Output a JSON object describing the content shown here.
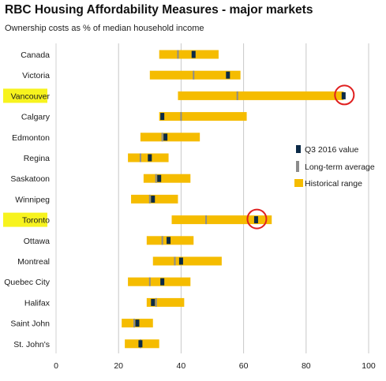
{
  "title": "RBC Housing Affordability Measures - major markets",
  "subtitle": "Ownership costs as % of median household income",
  "colors": {
    "range": "#f5bc00",
    "longterm": "#8c8c8c",
    "current": "#0b2a47",
    "highlight": "#f7f31e",
    "circle": "#e02020",
    "grid": "#c8c8c8"
  },
  "legend": {
    "q3": "Q3 2016 value",
    "lta": "Long-term average",
    "range": "Historical range"
  },
  "chart_data": {
    "type": "range",
    "xlim": [
      0,
      100
    ],
    "xticks": [
      0,
      20,
      40,
      60,
      80,
      100
    ],
    "grid": true,
    "legend_position": "right",
    "series": [
      {
        "name": "Historical range",
        "type": "range"
      },
      {
        "name": "Long-term average",
        "type": "marker"
      },
      {
        "name": "Q3 2016 value",
        "type": "marker"
      }
    ],
    "markets": [
      {
        "name": "Canada",
        "min": 33,
        "max": 52,
        "avg": 39,
        "q3": 44,
        "highlight": false,
        "circled": false
      },
      {
        "name": "Victoria",
        "min": 30,
        "max": 59,
        "avg": 44,
        "q3": 55,
        "highlight": false,
        "circled": false
      },
      {
        "name": "Vancouver",
        "min": 39,
        "max": 92,
        "avg": 58,
        "q3": 92,
        "highlight": true,
        "circled": true
      },
      {
        "name": "Calgary",
        "min": 33,
        "max": 61,
        "avg": 40,
        "q3": 34,
        "highlight": false,
        "circled": false
      },
      {
        "name": "Edmonton",
        "min": 27,
        "max": 46,
        "avg": 34,
        "q3": 35,
        "highlight": false,
        "circled": false
      },
      {
        "name": "Regina",
        "min": 23,
        "max": 36,
        "avg": 27,
        "q3": 30,
        "highlight": false,
        "circled": false
      },
      {
        "name": "Saskatoon",
        "min": 28,
        "max": 43,
        "avg": 32,
        "q3": 33,
        "highlight": false,
        "circled": false
      },
      {
        "name": "Winnipeg",
        "min": 24,
        "max": 39,
        "avg": 30,
        "q3": 31,
        "highlight": false,
        "circled": false
      },
      {
        "name": "Toronto",
        "min": 37,
        "max": 69,
        "avg": 48,
        "q3": 64,
        "highlight": true,
        "circled": true
      },
      {
        "name": "Ottawa",
        "min": 29,
        "max": 44,
        "avg": 34,
        "q3": 36,
        "highlight": false,
        "circled": false
      },
      {
        "name": "Montreal",
        "min": 31,
        "max": 53,
        "avg": 38,
        "q3": 40,
        "highlight": false,
        "circled": false
      },
      {
        "name": "Quebec City",
        "min": 23,
        "max": 43,
        "avg": 30,
        "q3": 34,
        "highlight": false,
        "circled": false
      },
      {
        "name": "Halifax",
        "min": 29,
        "max": 41,
        "avg": 32,
        "q3": 31,
        "highlight": false,
        "circled": false
      },
      {
        "name": "Saint John",
        "min": 21,
        "max": 31,
        "avg": 25,
        "q3": 26,
        "highlight": false,
        "circled": false
      },
      {
        "name": "St. John's",
        "min": 22,
        "max": 33,
        "avg": 27,
        "q3": 27,
        "highlight": false,
        "circled": false
      }
    ]
  }
}
